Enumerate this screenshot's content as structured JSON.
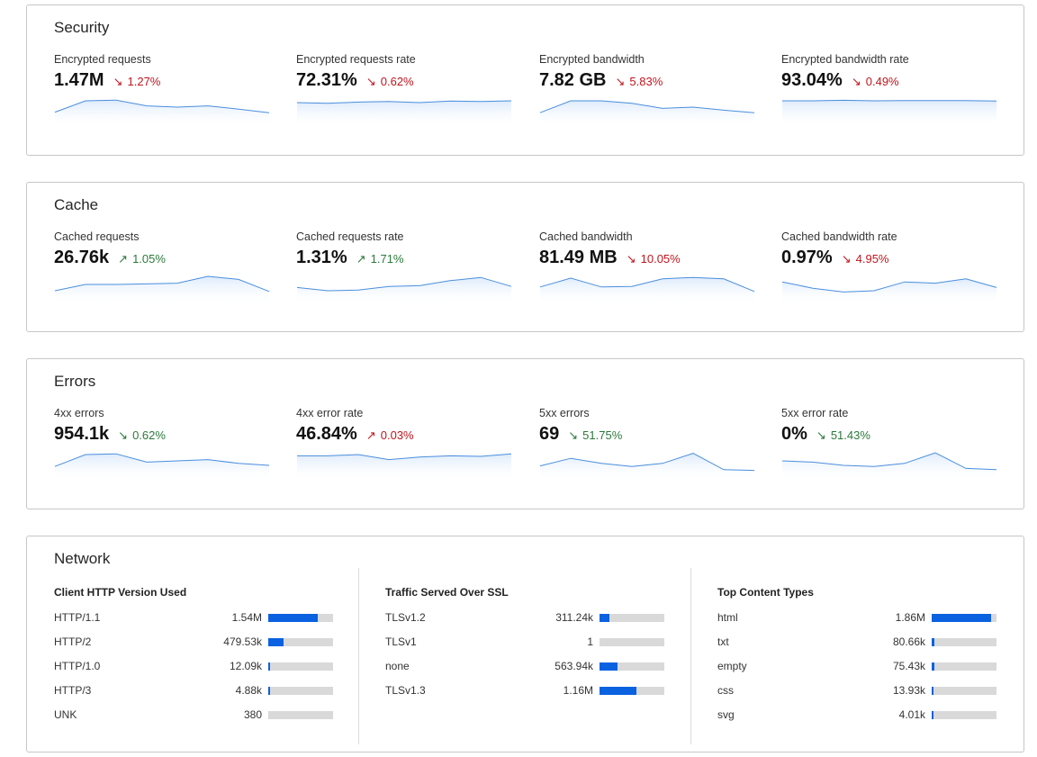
{
  "cards": [
    {
      "id": "security",
      "title": "Security",
      "metrics": [
        {
          "label": "Encrypted requests",
          "value": "1.47M",
          "delta": "1.27%",
          "direction": "down",
          "trend": [
            0.3,
            0.75,
            0.78,
            0.55,
            0.5,
            0.55,
            0.42,
            0.28
          ]
        },
        {
          "label": "Encrypted requests rate",
          "value": "72.31%",
          "delta": "0.62%",
          "direction": "down",
          "trend": [
            0.68,
            0.65,
            0.7,
            0.72,
            0.68,
            0.74,
            0.72,
            0.75
          ]
        },
        {
          "label": "Encrypted bandwidth",
          "value": "7.82 GB",
          "delta": "5.83%",
          "direction": "down",
          "trend": [
            0.28,
            0.75,
            0.75,
            0.65,
            0.45,
            0.5,
            0.38,
            0.28
          ]
        },
        {
          "label": "Encrypted bandwidth rate",
          "value": "93.04%",
          "delta": "0.49%",
          "direction": "down",
          "trend": [
            0.75,
            0.75,
            0.77,
            0.75,
            0.76,
            0.76,
            0.76,
            0.74
          ]
        }
      ]
    },
    {
      "id": "cache",
      "title": "Cache",
      "metrics": [
        {
          "label": "Cached requests",
          "value": "26.76k",
          "delta": "1.05%",
          "direction": "up",
          "trend": [
            0.25,
            0.5,
            0.5,
            0.52,
            0.55,
            0.82,
            0.7,
            0.22
          ]
        },
        {
          "label": "Cached requests rate",
          "value": "1.31%",
          "delta": "1.71%",
          "direction": "up",
          "trend": [
            0.38,
            0.25,
            0.28,
            0.42,
            0.45,
            0.65,
            0.78,
            0.42
          ]
        },
        {
          "label": "Cached bandwidth",
          "value": "81.49 MB",
          "delta": "10.05%",
          "direction": "down",
          "trend": [
            0.4,
            0.75,
            0.4,
            0.42,
            0.72,
            0.78,
            0.72,
            0.22
          ]
        },
        {
          "label": "Cached bandwidth rate",
          "value": "0.97%",
          "delta": "4.95%",
          "direction": "down",
          "trend": [
            0.6,
            0.35,
            0.2,
            0.25,
            0.6,
            0.55,
            0.72,
            0.38
          ]
        }
      ]
    },
    {
      "id": "errors",
      "title": "Errors",
      "metrics": [
        {
          "label": "4xx errors",
          "value": "954.1k",
          "delta": "0.62%",
          "direction": "down_good",
          "trend": [
            0.28,
            0.75,
            0.78,
            0.45,
            0.5,
            0.55,
            0.4,
            0.32
          ]
        },
        {
          "label": "4xx error rate",
          "value": "46.84%",
          "delta": "0.03%",
          "direction": "up_bad",
          "trend": [
            0.7,
            0.7,
            0.75,
            0.55,
            0.65,
            0.7,
            0.68,
            0.78
          ]
        },
        {
          "label": "5xx errors",
          "value": "69",
          "delta": "51.75%",
          "direction": "down_good",
          "trend": [
            0.3,
            0.6,
            0.4,
            0.28,
            0.4,
            0.8,
            0.15,
            0.12
          ]
        },
        {
          "label": "5xx error rate",
          "value": "0%",
          "delta": "51.43%",
          "direction": "down_good",
          "trend": [
            0.5,
            0.45,
            0.32,
            0.28,
            0.4,
            0.82,
            0.2,
            0.15
          ]
        }
      ]
    }
  ],
  "network": {
    "title": "Network",
    "columns": [
      {
        "heading": "Client HTTP Version Used",
        "rows": [
          {
            "name": "HTTP/1.1",
            "value": "1.54M",
            "fraction": 0.77
          },
          {
            "name": "HTTP/2",
            "value": "479.53k",
            "fraction": 0.24
          },
          {
            "name": "HTTP/1.0",
            "value": "12.09k",
            "fraction": 0.01
          },
          {
            "name": "HTTP/3",
            "value": "4.88k",
            "fraction": 0.005
          },
          {
            "name": "UNK",
            "value": "380",
            "fraction": 0
          }
        ]
      },
      {
        "heading": "Traffic Served Over SSL",
        "rows": [
          {
            "name": "TLSv1.2",
            "value": "311.24k",
            "fraction": 0.15
          },
          {
            "name": "TLSv1",
            "value": "1",
            "fraction": 0
          },
          {
            "name": "none",
            "value": "563.94k",
            "fraction": 0.28
          },
          {
            "name": "TLSv1.3",
            "value": "1.16M",
            "fraction": 0.57
          }
        ]
      },
      {
        "heading": "Top Content Types",
        "rows": [
          {
            "name": "html",
            "value": "1.86M",
            "fraction": 0.92
          },
          {
            "name": "txt",
            "value": "80.66k",
            "fraction": 0.04
          },
          {
            "name": "empty",
            "value": "75.43k",
            "fraction": 0.04
          },
          {
            "name": "css",
            "value": "13.93k",
            "fraction": 0.01
          },
          {
            "name": "svg",
            "value": "4.01k",
            "fraction": 0.005
          }
        ]
      }
    ]
  },
  "colors": {
    "delta_bad": "#c0161e",
    "delta_good": "#2a7a3a",
    "sparkline": "#4a8fdd",
    "bar_fill": "#0a62e0",
    "bar_track": "#d9d9d9"
  }
}
